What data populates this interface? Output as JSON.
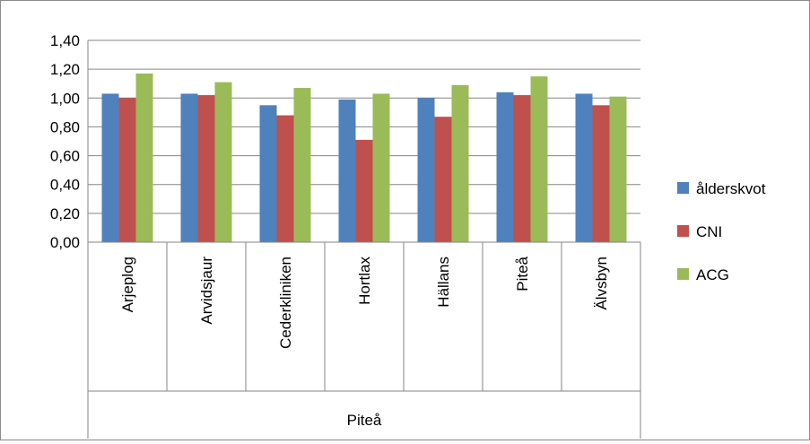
{
  "chart_data": {
    "type": "bar",
    "title": "",
    "xlabel": "",
    "ylabel": "",
    "group_label": "Piteå",
    "categories": [
      "Arjeplog",
      "Arvidsjaur",
      "Cederkliniken",
      "Hortlax",
      "Hällans",
      "Piteå",
      "Älvsbyn"
    ],
    "series": [
      {
        "name": "ålderskvot",
        "color": "#4f81bd",
        "values": [
          1.03,
          1.03,
          0.95,
          0.99,
          1.0,
          1.04,
          1.03
        ]
      },
      {
        "name": "CNI",
        "color": "#c0504d",
        "values": [
          1.0,
          1.02,
          0.88,
          0.71,
          0.87,
          1.02,
          0.95
        ]
      },
      {
        "name": "ACG",
        "color": "#9bbb59",
        "values": [
          1.17,
          1.11,
          1.07,
          1.03,
          1.09,
          1.15,
          1.01
        ]
      }
    ],
    "ylim": [
      0,
      1.4
    ],
    "yticks": [
      "0,00",
      "0,20",
      "0,40",
      "0,60",
      "0,80",
      "1,00",
      "1,20",
      "1,40"
    ],
    "grid": true,
    "legend_position": "right"
  }
}
